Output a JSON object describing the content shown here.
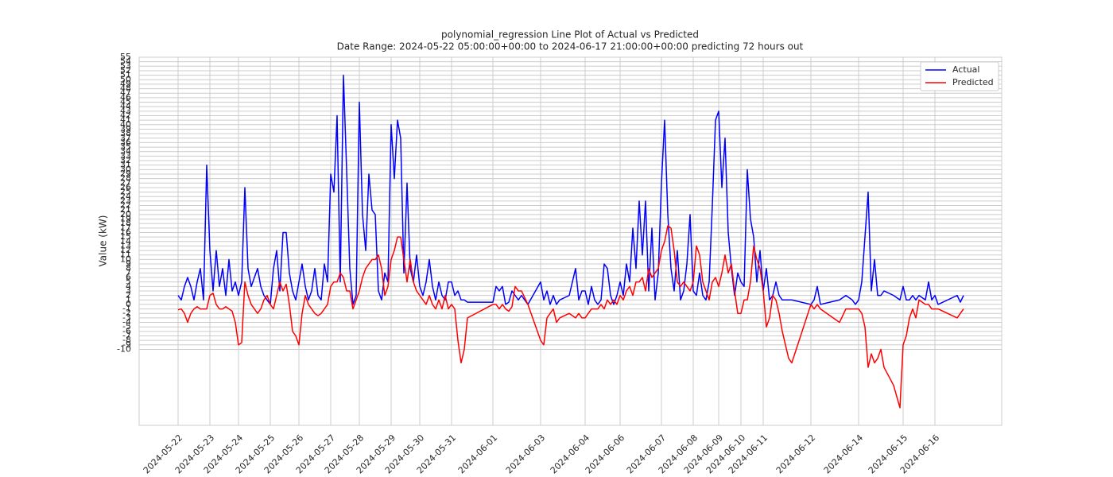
{
  "chart_data": {
    "type": "line",
    "title": "polynomial_regression Line Plot of Actual vs Predicted",
    "subtitle": "Date Range: 2024-05-22 05:00:00+00:00 to 2024-06-17 21:00:00+00:00 predicting 72 hours out",
    "y_label": "Value (kW)",
    "x": [
      0,
      1,
      2,
      3,
      4,
      5,
      6,
      7,
      8,
      9,
      10,
      11,
      12,
      13,
      14,
      15,
      16,
      17,
      18,
      19,
      20,
      21,
      22,
      23,
      24,
      25,
      26,
      27,
      28,
      29,
      30,
      31,
      32,
      33,
      34,
      35,
      36,
      37,
      38,
      39,
      40,
      41,
      42,
      43,
      44,
      45,
      46,
      47,
      48,
      49,
      50,
      51,
      52,
      53,
      54,
      55,
      56,
      57,
      58,
      59,
      60,
      61,
      62,
      63,
      64,
      65,
      66,
      67,
      68,
      69,
      70,
      71,
      72,
      73,
      74,
      75,
      76,
      77,
      78,
      79,
      80,
      81,
      82,
      83,
      84,
      85,
      86,
      87,
      88,
      89,
      90,
      91,
      99,
      100,
      101,
      102,
      103,
      104,
      105,
      106,
      107,
      108,
      110,
      114,
      115,
      116,
      117,
      118,
      119,
      120,
      123,
      125,
      126,
      127,
      128,
      129,
      130,
      131,
      132,
      133,
      134,
      135,
      136,
      137,
      138,
      139,
      140,
      141,
      142,
      143,
      144,
      145,
      146,
      147,
      148,
      149,
      150,
      151,
      152,
      153,
      154,
      155,
      156,
      157,
      158,
      159,
      160,
      161,
      162,
      163,
      164,
      165,
      166,
      167,
      168,
      169,
      170,
      171,
      172,
      173,
      174,
      175,
      176,
      177,
      178,
      179,
      180,
      181,
      182,
      183,
      184,
      185,
      186,
      187,
      188,
      189,
      190,
      192,
      193,
      199,
      200,
      201,
      202,
      208,
      210,
      212,
      213,
      214,
      215,
      216,
      217,
      218,
      219,
      220,
      221,
      222,
      225,
      227,
      228,
      229,
      230,
      231,
      232,
      233,
      235,
      236,
      237,
      238,
      239,
      245,
      246,
      247
    ],
    "series": [
      {
        "name": "Actual",
        "color": "#0000ff",
        "values": [
          2,
          1,
          4,
          6,
          4,
          1,
          5,
          8,
          1,
          31,
          12,
          3,
          12,
          4,
          8,
          2,
          10,
          3,
          5,
          2,
          5,
          26,
          8,
          4,
          6,
          8,
          4,
          2,
          1,
          0,
          8,
          12,
          3,
          16,
          16,
          7,
          3,
          1,
          5,
          9,
          4,
          1,
          3,
          8,
          2,
          1,
          9,
          5,
          29,
          25,
          42,
          5,
          51,
          30,
          8,
          0,
          2,
          45,
          20,
          12,
          29,
          21,
          20,
          3,
          1,
          7,
          5,
          40,
          28,
          41,
          37,
          7,
          27,
          8,
          5,
          11,
          4,
          2,
          5,
          10,
          4,
          1,
          5,
          2,
          1,
          5,
          5,
          2,
          3,
          1,
          1,
          0.5,
          0.5,
          4,
          3,
          4,
          0,
          0.5,
          3,
          2,
          1,
          2,
          0,
          5,
          1,
          3,
          0,
          2,
          0,
          1,
          2,
          8,
          1,
          3,
          3,
          0,
          4,
          1,
          0,
          1,
          9,
          8,
          2,
          0,
          2,
          5,
          2,
          9,
          5,
          17,
          8,
          23,
          11,
          23,
          3,
          17,
          1,
          7,
          27,
          41,
          20,
          8,
          3,
          12,
          1,
          3,
          9,
          20,
          3,
          2,
          7,
          2,
          1,
          5,
          22,
          41,
          43,
          26,
          37,
          16,
          8,
          2,
          7,
          5,
          4,
          30,
          19,
          15,
          5,
          12,
          3,
          8,
          1,
          2,
          5,
          2,
          1,
          1,
          1,
          0,
          1,
          4,
          0,
          1,
          2,
          1,
          0,
          1,
          5,
          15,
          25,
          3,
          10,
          2,
          2,
          3,
          2,
          1,
          4,
          1,
          1,
          2,
          1,
          2,
          1,
          5,
          1,
          2,
          0,
          2,
          0.5,
          2
        ]
      },
      {
        "name": "Predicted",
        "color": "#ff0000",
        "values": [
          -1.2,
          -1,
          -2,
          -4,
          -2,
          -1,
          -0.5,
          -1,
          -1,
          -1,
          2,
          2.5,
          0,
          -1,
          -1,
          -0.5,
          -1,
          -1.5,
          -4,
          -9,
          -8.5,
          5,
          2,
          0,
          -1,
          -2,
          -1,
          1,
          2,
          0,
          -1,
          2,
          5,
          3,
          4.5,
          0,
          -6,
          -7,
          -9,
          -2,
          2,
          0,
          -1,
          -2,
          -2.5,
          -2,
          -1,
          0,
          4,
          5,
          5,
          7,
          6,
          3,
          3,
          -1,
          1,
          3,
          6,
          8,
          9,
          10,
          10,
          11,
          8,
          2,
          4,
          10,
          12,
          15,
          15,
          10,
          5,
          10,
          5,
          3,
          2,
          1,
          0,
          2,
          0,
          -1,
          1,
          -1,
          2,
          -1,
          0,
          -1,
          -8,
          -13,
          -10,
          -3,
          0,
          0,
          -1,
          0,
          -1,
          -1.5,
          -0.5,
          4,
          3,
          3,
          0,
          -8,
          -9,
          -3,
          -2,
          -1,
          -4,
          -3,
          -2,
          -3,
          -2,
          -3,
          -3,
          -2,
          -1,
          -1,
          -1,
          0,
          -1,
          1,
          0,
          1,
          0,
          2,
          1,
          3,
          4,
          2,
          5,
          5,
          6,
          3,
          8,
          6,
          7,
          8,
          12,
          14,
          17.5,
          17,
          12,
          5,
          4,
          5,
          4,
          3,
          5,
          13,
          11,
          5,
          3,
          1,
          5,
          6,
          4,
          7,
          11,
          7,
          9,
          3,
          -2,
          -2,
          1,
          1,
          5,
          13,
          10,
          8,
          3,
          -5,
          -3,
          2,
          1,
          -2,
          -6,
          -12,
          -13,
          0,
          -1,
          0,
          -1,
          -4,
          -1,
          -1,
          -1,
          -1,
          -2,
          -5,
          -14,
          -11,
          -13,
          -12,
          -10,
          -14,
          -18,
          -23,
          -9,
          -7,
          -3,
          -1,
          -3,
          1,
          0,
          0,
          -1,
          -1,
          -1,
          -3,
          -2,
          -1
        ]
      }
    ],
    "xlim": [
      -12.25,
      259
    ],
    "xticks": [
      {
        "value": 0,
        "label": "2024-05-22"
      },
      {
        "value": 10,
        "label": "2024-05-23"
      },
      {
        "value": 19,
        "label": "2024-05-24"
      },
      {
        "value": 29,
        "label": "2024-05-25"
      },
      {
        "value": 38,
        "label": "2024-05-26"
      },
      {
        "value": 48,
        "label": "2024-05-27"
      },
      {
        "value": 57,
        "label": "2024-05-28"
      },
      {
        "value": 67,
        "label": "2024-05-29"
      },
      {
        "value": 76,
        "label": "2024-05-30"
      },
      {
        "value": 86,
        "label": "2024-05-31"
      },
      {
        "value": 99,
        "label": "2024-06-01"
      },
      {
        "value": 114,
        "label": "2024-06-03"
      },
      {
        "value": 128,
        "label": "2024-06-04"
      },
      {
        "value": 139,
        "label": "2024-06-06"
      },
      {
        "value": 152,
        "label": "2024-06-07"
      },
      {
        "value": 162,
        "label": "2024-06-08"
      },
      {
        "value": 170,
        "label": "2024-06-09"
      },
      {
        "value": 177,
        "label": "2024-06-10"
      },
      {
        "value": 184,
        "label": "2024-06-11"
      },
      {
        "value": 199,
        "label": "2024-06-12"
      },
      {
        "value": 214,
        "label": "2024-06-14"
      },
      {
        "value": 228,
        "label": "2024-06-15"
      },
      {
        "value": 238,
        "label": "2024-06-16"
      }
    ],
    "ylim": [
      -26.9,
      55
    ],
    "yticks": [
      -10,
      -9,
      -8,
      -7,
      -6,
      -5,
      -4,
      -3,
      -2,
      -1,
      0,
      1,
      2,
      3,
      4,
      5,
      6,
      7,
      8,
      9,
      10,
      11,
      12,
      13,
      14,
      15,
      16,
      17,
      18,
      19,
      20,
      21,
      22,
      23,
      24,
      25,
      26,
      27,
      28,
      29,
      30,
      31,
      32,
      33,
      34,
      35,
      36,
      37,
      38,
      39,
      40,
      41,
      42,
      43,
      44,
      45,
      46,
      47,
      48,
      49,
      50,
      51,
      52,
      53,
      54,
      55
    ],
    "grid": true,
    "legend": "upper right"
  }
}
